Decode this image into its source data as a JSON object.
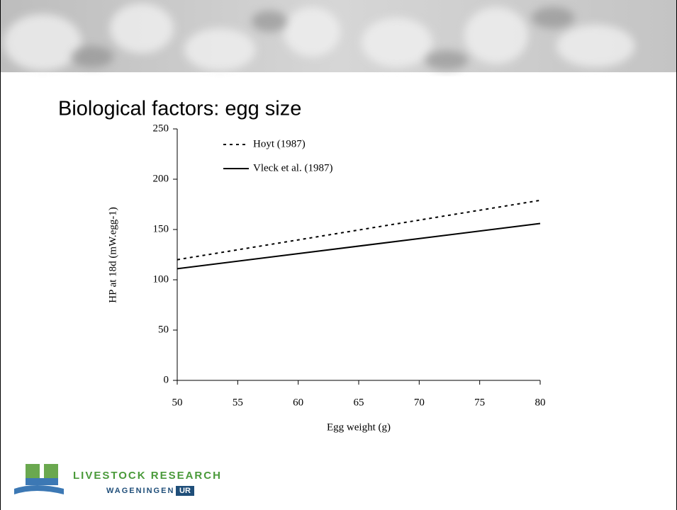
{
  "slide": {
    "title": "Biological factors: egg size"
  },
  "logo": {
    "line1": "LIVESTOCK RESEARCH",
    "line2": "WAGENINGEN",
    "line3": "UR"
  },
  "chart_data": {
    "type": "line",
    "x_label": "Egg weight (g)",
    "y_label": "HP at 18d (mW.egg-1)",
    "x": [
      50,
      80
    ],
    "series": [
      {
        "name": "Hoyt (1987)",
        "color": "#000000",
        "line_style": "dashed",
        "values": [
          120,
          179
        ]
      },
      {
        "name": "Vleck et al. (1987)",
        "color": "#000000",
        "line_style": "solid",
        "values": [
          111,
          156
        ]
      }
    ],
    "xlim": [
      50,
      80
    ],
    "xticks": [
      50,
      55,
      60,
      65,
      70,
      75,
      80
    ],
    "ylim": [
      0,
      250
    ],
    "yticks": [
      0,
      50,
      100,
      150,
      200,
      250
    ],
    "grid": false,
    "legend": "upper left"
  }
}
